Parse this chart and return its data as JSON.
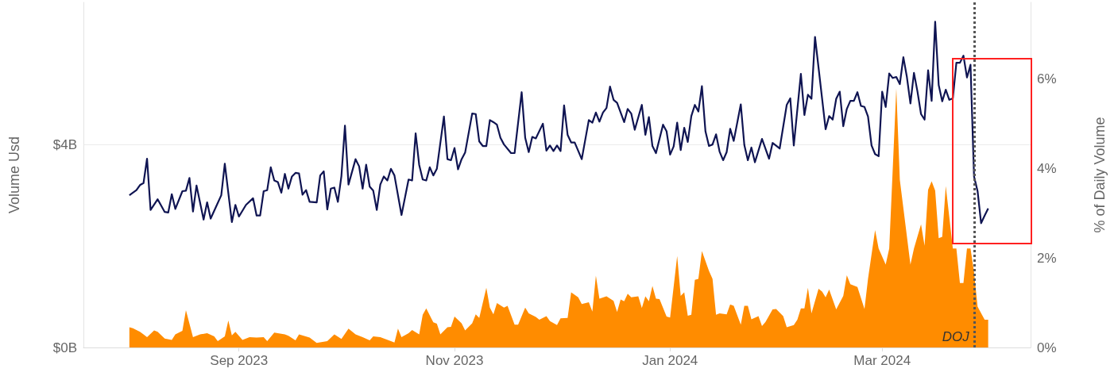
{
  "chart_data": {
    "type": "line",
    "ylabel": "Volume Usd",
    "y2label": "% of Daily Volume",
    "xlim": [
      "2023-07-19",
      "2024-04-12"
    ],
    "xticks": [
      {
        "value": "2023-09-01",
        "label": "Sep 2023"
      },
      {
        "value": "2023-11-01",
        "label": "Nov 2023"
      },
      {
        "value": "2024-01-01",
        "label": "Jan 2024"
      },
      {
        "value": "2024-03-01",
        "label": "Mar 2024"
      }
    ],
    "ylim": [
      0,
      6.8
    ],
    "yticks": [
      {
        "value": 0,
        "label": "$0B"
      },
      {
        "value": 4,
        "label": "$4B"
      }
    ],
    "y2lim": [
      0,
      7.7
    ],
    "y2ticks": [
      {
        "value": 0,
        "label": "0%"
      },
      {
        "value": 2,
        "label": "2%"
      },
      {
        "value": 4,
        "label": "4%"
      },
      {
        "value": 6,
        "label": "6%"
      }
    ],
    "grid": "y",
    "ref_lines": [
      {
        "axis": "x",
        "value": "2024-03-27",
        "label": "DOJ",
        "line_style": "dotted",
        "color": "#555555"
      }
    ],
    "series": [
      {
        "type": "area",
        "axis": "y2",
        "color": "#ff8c00",
        "x": [
          "2023-08-01",
          "2023-08-02",
          "2023-08-04",
          "2023-08-05",
          "2023-08-06",
          "2023-08-08",
          "2023-08-09",
          "2023-08-11",
          "2023-08-13",
          "2023-08-14",
          "2023-08-16",
          "2023-08-17",
          "2023-08-19",
          "2023-08-21",
          "2023-08-23",
          "2023-08-25",
          "2023-08-26",
          "2023-08-28",
          "2023-08-29",
          "2023-08-30",
          "2023-08-31",
          "2023-09-02",
          "2023-09-04",
          "2023-09-06",
          "2023-09-08",
          "2023-09-09",
          "2023-09-11",
          "2023-09-14",
          "2023-09-15",
          "2023-09-17",
          "2023-09-18",
          "2023-09-21",
          "2023-09-23",
          "2023-09-26",
          "2023-09-28",
          "2023-09-30",
          "2023-10-02",
          "2023-10-04",
          "2023-10-06",
          "2023-10-08",
          "2023-10-09",
          "2023-10-11",
          "2023-10-14",
          "2023-10-15",
          "2023-10-16",
          "2023-10-17",
          "2023-10-19",
          "2023-10-20",
          "2023-10-22",
          "2023-10-23",
          "2023-10-24",
          "2023-10-26",
          "2023-10-27",
          "2023-10-28",
          "2023-10-30",
          "2023-10-31",
          "2023-11-01",
          "2023-11-03",
          "2023-11-04",
          "2023-11-06",
          "2023-11-07",
          "2023-11-08",
          "2023-11-10",
          "2023-11-11",
          "2023-11-12",
          "2023-11-13",
          "2023-11-15",
          "2023-11-16",
          "2023-11-18",
          "2023-11-19",
          "2023-11-21",
          "2023-11-22",
          "2023-11-24",
          "2023-11-25",
          "2023-11-27",
          "2023-11-28",
          "2023-11-30",
          "2023-12-01",
          "2023-12-03",
          "2023-12-04",
          "2023-12-06",
          "2023-12-07",
          "2023-12-09",
          "2023-12-10",
          "2023-12-11",
          "2023-12-12",
          "2023-12-14",
          "2023-12-16",
          "2023-12-17",
          "2023-12-18",
          "2023-12-19",
          "2023-12-20",
          "2023-12-21",
          "2023-12-23",
          "2023-12-24",
          "2023-12-25",
          "2023-12-26",
          "2023-12-27",
          "2023-12-28",
          "2023-12-29",
          "2023-12-31",
          "2024-01-01",
          "2024-01-03",
          "2024-01-04",
          "2024-01-05",
          "2024-01-06",
          "2024-01-07",
          "2024-01-08",
          "2024-01-09",
          "2024-01-10",
          "2024-01-12",
          "2024-01-13",
          "2024-01-14",
          "2024-01-15",
          "2024-01-17",
          "2024-01-18",
          "2024-01-19",
          "2024-01-21",
          "2024-01-22",
          "2024-01-23",
          "2024-01-24",
          "2024-01-26",
          "2024-01-27",
          "2024-01-28",
          "2024-01-30",
          "2024-01-31",
          "2024-02-02",
          "2024-02-03",
          "2024-02-05",
          "2024-02-06",
          "2024-02-07",
          "2024-02-08",
          "2024-02-09",
          "2024-02-10",
          "2024-02-12",
          "2024-02-13",
          "2024-02-14",
          "2024-02-15",
          "2024-02-17",
          "2024-02-19",
          "2024-02-20",
          "2024-02-21",
          "2024-02-23",
          "2024-02-25",
          "2024-02-26",
          "2024-02-28",
          "2024-02-29",
          "2024-03-02",
          "2024-03-03",
          "2024-03-05",
          "2024-03-06",
          "2024-03-09",
          "2024-03-10",
          "2024-03-12",
          "2024-03-13",
          "2024-03-14",
          "2024-03-15",
          "2024-03-16",
          "2024-03-17",
          "2024-03-18",
          "2024-03-19",
          "2024-03-21",
          "2024-03-22",
          "2024-03-23",
          "2024-03-24",
          "2024-03-25",
          "2024-03-26",
          "2024-03-27",
          "2024-03-28",
          "2024-03-30",
          "2024-03-31"
        ],
        "values": [
          0.45,
          0.43,
          0.35,
          0.29,
          0.23,
          0.38,
          0.35,
          0.2,
          0.17,
          0.29,
          0.37,
          0.83,
          0.23,
          0.29,
          0.32,
          0.25,
          0.14,
          0.25,
          0.6,
          0.27,
          0.35,
          0.17,
          0.23,
          0.22,
          0.23,
          0.14,
          0.33,
          0.29,
          0.26,
          0.16,
          0.29,
          0.22,
          0.1,
          0.14,
          0.29,
          0.19,
          0.42,
          0.29,
          0.23,
          0.16,
          0.25,
          0.23,
          0.14,
          0.11,
          0.42,
          0.23,
          0.32,
          0.39,
          0.29,
          0.73,
          0.87,
          0.56,
          0.53,
          0.29,
          0.45,
          0.46,
          0.69,
          0.54,
          0.38,
          0.54,
          0.74,
          0.66,
          1.33,
          0.89,
          0.74,
          0.99,
          0.89,
          0.93,
          0.51,
          0.51,
          0.89,
          0.76,
          0.68,
          0.62,
          0.7,
          0.59,
          0.5,
          0.65,
          0.66,
          1.23,
          1.12,
          0.97,
          1.01,
          0.8,
          1.6,
          1.09,
          1.14,
          1.04,
          0.79,
          1.07,
          1.03,
          1.2,
          1.12,
          1.14,
          0.88,
          1.14,
          1.03,
          1.37,
          1.09,
          1.08,
          0.69,
          0.67,
          2.04,
          1.15,
          1.23,
          0.71,
          0.73,
          1.51,
          1.53,
          2.15,
          1.71,
          1.53,
          0.73,
          0.76,
          0.74,
          0.96,
          0.93,
          0.51,
          0.93,
          0.93,
          0.63,
          0.7,
          0.48,
          0.57,
          0.85,
          0.86,
          0.7,
          0.45,
          0.5,
          0.62,
          0.87,
          0.87,
          1.33,
          0.76,
          1.31,
          1.25,
          1.12,
          1.29,
          0.85,
          1.15,
          1.61,
          1.41,
          1.35,
          0.86,
          1.53,
          2.62,
          2.21,
          1.85,
          2.21,
          5.78,
          3.74,
          1.85,
          2.21,
          2.75,
          2.27,
          3.52,
          3.71,
          3.5,
          2.44,
          2.47,
          3.6,
          2.21,
          2.21,
          1.44,
          1.44,
          2.21,
          2.21,
          1.68,
          0.91,
          0.62,
          0.62
        ]
      },
      {
        "type": "line",
        "color": "#0f1452",
        "x": [
          "2023-08-01",
          "2023-08-03",
          "2023-08-04",
          "2023-08-05",
          "2023-08-06",
          "2023-08-07",
          "2023-08-09",
          "2023-08-11",
          "2023-08-12",
          "2023-08-13",
          "2023-08-14",
          "2023-08-16",
          "2023-08-17",
          "2023-08-18",
          "2023-08-19",
          "2023-08-20",
          "2023-08-22",
          "2023-08-23",
          "2023-08-24",
          "2023-08-27",
          "2023-08-28",
          "2023-08-30",
          "2023-08-31",
          "2023-09-01",
          "2023-09-03",
          "2023-09-05",
          "2023-09-06",
          "2023-09-07",
          "2023-09-08",
          "2023-09-09",
          "2023-09-10",
          "2023-09-11",
          "2023-09-12",
          "2023-09-13",
          "2023-09-14",
          "2023-09-15",
          "2023-09-16",
          "2023-09-17",
          "2023-09-18",
          "2023-09-19",
          "2023-09-20",
          "2023-09-21",
          "2023-09-23",
          "2023-09-24",
          "2023-09-25",
          "2023-09-26",
          "2023-09-27",
          "2023-09-28",
          "2023-09-29",
          "2023-09-30",
          "2023-10-01",
          "2023-10-02",
          "2023-10-04",
          "2023-10-05",
          "2023-10-06",
          "2023-10-07",
          "2023-10-08",
          "2023-10-09",
          "2023-10-10",
          "2023-10-11",
          "2023-10-12",
          "2023-10-13",
          "2023-10-14",
          "2023-10-15",
          "2023-10-17",
          "2023-10-19",
          "2023-10-20",
          "2023-10-21",
          "2023-10-22",
          "2023-10-23",
          "2023-10-24",
          "2023-10-25",
          "2023-10-26",
          "2023-10-27",
          "2023-10-29",
          "2023-10-30",
          "2023-10-31",
          "2023-11-01",
          "2023-11-02",
          "2023-11-03",
          "2023-11-04",
          "2023-11-06",
          "2023-11-07",
          "2023-11-08",
          "2023-11-09",
          "2023-11-10",
          "2023-11-11",
          "2023-11-12",
          "2023-11-13",
          "2023-11-14",
          "2023-11-15",
          "2023-11-17",
          "2023-11-18",
          "2023-11-20",
          "2023-11-21",
          "2023-11-22",
          "2023-11-23",
          "2023-11-24",
          "2023-11-26",
          "2023-11-27",
          "2023-11-28",
          "2023-11-29",
          "2023-11-30",
          "2023-12-01",
          "2023-12-02",
          "2023-12-03",
          "2023-12-04",
          "2023-12-05",
          "2023-12-07",
          "2023-12-09",
          "2023-12-10",
          "2023-12-11",
          "2023-12-12",
          "2023-12-13",
          "2023-12-14",
          "2023-12-15",
          "2023-12-16",
          "2023-12-17",
          "2023-12-19",
          "2023-12-20",
          "2023-12-21",
          "2023-12-22",
          "2023-12-24",
          "2023-12-25",
          "2023-12-26",
          "2023-12-27",
          "2023-12-28",
          "2023-12-30",
          "2023-12-31",
          "2024-01-01",
          "2024-01-02",
          "2024-01-03",
          "2024-01-04",
          "2024-01-05",
          "2024-01-06",
          "2024-01-07",
          "2024-01-08",
          "2024-01-09",
          "2024-01-10",
          "2024-01-11",
          "2024-01-12",
          "2024-01-13",
          "2024-01-14",
          "2024-01-15",
          "2024-01-16",
          "2024-01-17",
          "2024-01-18",
          "2024-01-19",
          "2024-01-21",
          "2024-01-22",
          "2024-01-23",
          "2024-01-24",
          "2024-01-25",
          "2024-01-27",
          "2024-01-29",
          "2024-01-30",
          "2024-02-01",
          "2024-02-03",
          "2024-02-04",
          "2024-02-05",
          "2024-02-07",
          "2024-02-08",
          "2024-02-09",
          "2024-02-10",
          "2024-02-11",
          "2024-02-14",
          "2024-02-15",
          "2024-02-16",
          "2024-02-17",
          "2024-02-18",
          "2024-02-19",
          "2024-02-20",
          "2024-02-21",
          "2024-02-22",
          "2024-02-23",
          "2024-02-24",
          "2024-02-25",
          "2024-02-26",
          "2024-02-27",
          "2024-02-28",
          "2024-02-29",
          "2024-03-01",
          "2024-03-02",
          "2024-03-03",
          "2024-03-04",
          "2024-03-05",
          "2024-03-06",
          "2024-03-07",
          "2024-03-08",
          "2024-03-09",
          "2024-03-10",
          "2024-03-11",
          "2024-03-12",
          "2024-03-13",
          "2024-03-14",
          "2024-03-15",
          "2024-03-16",
          "2024-03-17",
          "2024-03-18",
          "2024-03-19",
          "2024-03-20",
          "2024-03-21",
          "2024-03-22",
          "2024-03-23",
          "2024-03-24",
          "2024-03-25",
          "2024-03-26",
          "2024-03-27",
          "2024-03-28",
          "2024-03-29",
          "2024-03-30",
          "2024-03-31"
        ],
        "values": [
          3.0,
          3.1,
          3.2,
          3.24,
          3.72,
          2.71,
          2.92,
          2.67,
          2.66,
          3.02,
          2.73,
          3.08,
          3.09,
          3.34,
          2.68,
          3.19,
          2.52,
          2.86,
          2.54,
          3.0,
          3.62,
          2.47,
          2.81,
          2.58,
          2.81,
          2.94,
          2.6,
          2.6,
          3.08,
          3.1,
          3.55,
          3.29,
          3.26,
          3.05,
          3.42,
          3.13,
          3.37,
          3.44,
          3.43,
          3.01,
          3.1,
          2.87,
          2.86,
          3.39,
          3.47,
          2.72,
          3.13,
          3.15,
          2.87,
          3.38,
          4.37,
          3.21,
          3.71,
          3.57,
          3.13,
          3.6,
          3.17,
          3.09,
          2.71,
          3.21,
          3.37,
          3.29,
          3.52,
          3.39,
          2.61,
          3.31,
          3.29,
          4.22,
          3.6,
          3.31,
          3.29,
          3.55,
          3.39,
          3.52,
          4.55,
          3.71,
          3.69,
          3.93,
          3.51,
          3.71,
          3.84,
          4.61,
          4.6,
          4.06,
          3.97,
          3.97,
          4.48,
          4.44,
          4.39,
          4.13,
          4.0,
          3.83,
          3.83,
          5.03,
          4.13,
          3.85,
          4.15,
          4.12,
          4.41,
          3.88,
          3.98,
          3.87,
          3.98,
          3.87,
          4.77,
          4.19,
          4.04,
          4.04,
          3.71,
          4.48,
          4.43,
          4.63,
          4.45,
          4.63,
          4.72,
          5.14,
          4.88,
          4.82,
          4.44,
          4.7,
          4.61,
          4.29,
          4.78,
          4.19,
          4.54,
          3.97,
          3.83,
          4.39,
          4.26,
          3.8,
          3.96,
          4.43,
          3.89,
          4.33,
          4.05,
          4.56,
          4.78,
          4.65,
          5.15,
          4.26,
          3.97,
          4.0,
          4.2,
          3.86,
          3.69,
          3.85,
          4.31,
          4.07,
          4.79,
          3.99,
          3.69,
          3.94,
          3.65,
          4.11,
          3.72,
          4.03,
          3.92,
          4.78,
          4.91,
          3.98,
          5.39,
          4.58,
          4.98,
          4.9,
          6.12,
          4.3,
          4.56,
          4.49,
          4.9,
          5.04,
          4.36,
          4.7,
          4.86,
          4.86,
          5.03,
          4.76,
          4.74,
          4.55,
          3.98,
          3.81,
          3.77,
          5.04,
          4.74,
          5.4,
          5.31,
          5.33,
          5.19,
          5.72,
          5.33,
          4.81,
          5.41,
          5.04,
          4.6,
          4.49,
          5.46,
          4.86,
          6.42,
          5.17,
          4.85,
          5.08,
          4.88,
          4.91,
          5.61,
          5.61,
          5.75,
          5.32,
          5.57,
          3.37,
          3.08,
          2.45,
          2.6,
          2.74
        ]
      }
    ]
  }
}
